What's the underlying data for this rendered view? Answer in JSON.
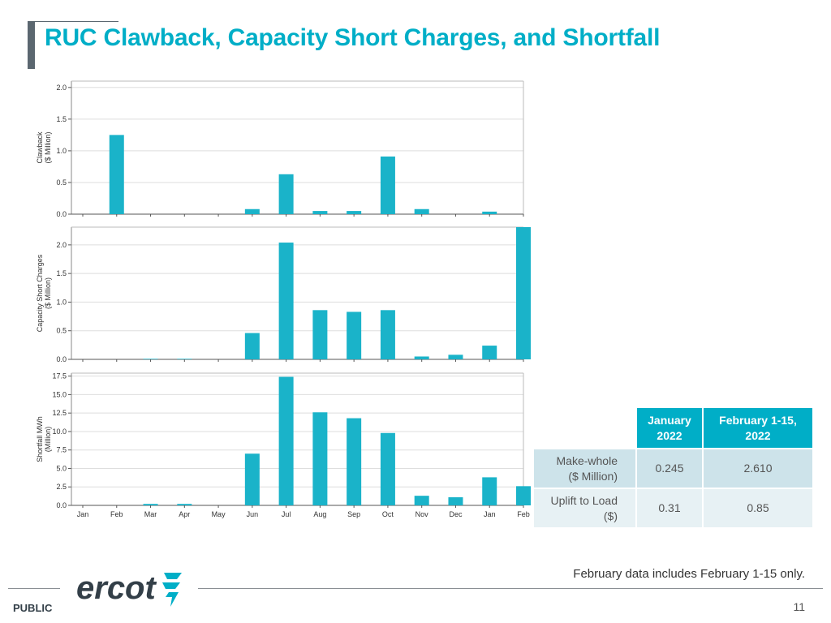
{
  "slide": {
    "title": "RUC Clawback, Capacity Short Charges, and Shortfall",
    "note": "February data includes February 1-15 only.",
    "footer_label": "PUBLIC",
    "page_number": "11",
    "logo_text": "ercot"
  },
  "colors": {
    "accent": "#00aec7",
    "bar": "#1ab3c9",
    "title_bar": "#5b6770"
  },
  "table": {
    "headers": [
      "January\n2022",
      "February 1-15,\n2022"
    ],
    "rows": [
      {
        "label": "Make-whole\n($ Million)",
        "values": [
          "0.245",
          "2.610"
        ]
      },
      {
        "label": "Uplift to Load\n($)",
        "values": [
          "0.31",
          "0.85"
        ]
      }
    ]
  },
  "chart_data": [
    {
      "type": "bar",
      "categories": [
        "Jan",
        "Feb",
        "Mar",
        "Apr",
        "May",
        "Jun",
        "Jul",
        "Aug",
        "Sep",
        "Oct",
        "Nov",
        "Dec",
        "Jan",
        "Feb"
      ],
      "values": [
        0,
        1.25,
        0,
        0,
        0,
        0.08,
        0.63,
        0.05,
        0.05,
        0.91,
        0.08,
        0,
        0.04,
        0
      ],
      "ylabel": "Clawback\n($ Million)",
      "ylim": [
        0,
        2.1
      ],
      "yticks": [
        "0.0",
        "0.5",
        "1.0",
        "1.5",
        "2.0"
      ],
      "grid": true
    },
    {
      "type": "bar",
      "categories": [
        "Jan",
        "Feb",
        "Mar",
        "Apr",
        "May",
        "Jun",
        "Jul",
        "Aug",
        "Sep",
        "Oct",
        "Nov",
        "Dec",
        "Jan",
        "Feb"
      ],
      "values": [
        0,
        0,
        0.01,
        0.01,
        0,
        0.46,
        2.04,
        0.86,
        0.83,
        0.86,
        0.05,
        0.08,
        0.24,
        2.31
      ],
      "ylabel": "Capacity Short Charges\n($ Million)",
      "ylim": [
        0,
        2.31
      ],
      "yticks": [
        "0.0",
        "0.5",
        "1.0",
        "1.5",
        "2.0"
      ],
      "grid": true
    },
    {
      "type": "bar",
      "categories": [
        "Jan",
        "Feb",
        "Mar",
        "Apr",
        "May",
        "Jun",
        "Jul",
        "Aug",
        "Sep",
        "Oct",
        "Nov",
        "Dec",
        "Jan",
        "Feb"
      ],
      "values": [
        0,
        0,
        0.2,
        0.2,
        0,
        7.0,
        17.4,
        12.6,
        11.8,
        9.8,
        1.3,
        1.1,
        3.8,
        2.6
      ],
      "ylabel": "Shortfall MWh\n(Million)",
      "ylim": [
        0,
        17.9
      ],
      "yticks": [
        "0.0",
        "2.5",
        "5.0",
        "7.5",
        "10.0",
        "12.5",
        "15.0",
        "17.5"
      ],
      "grid": true
    }
  ]
}
